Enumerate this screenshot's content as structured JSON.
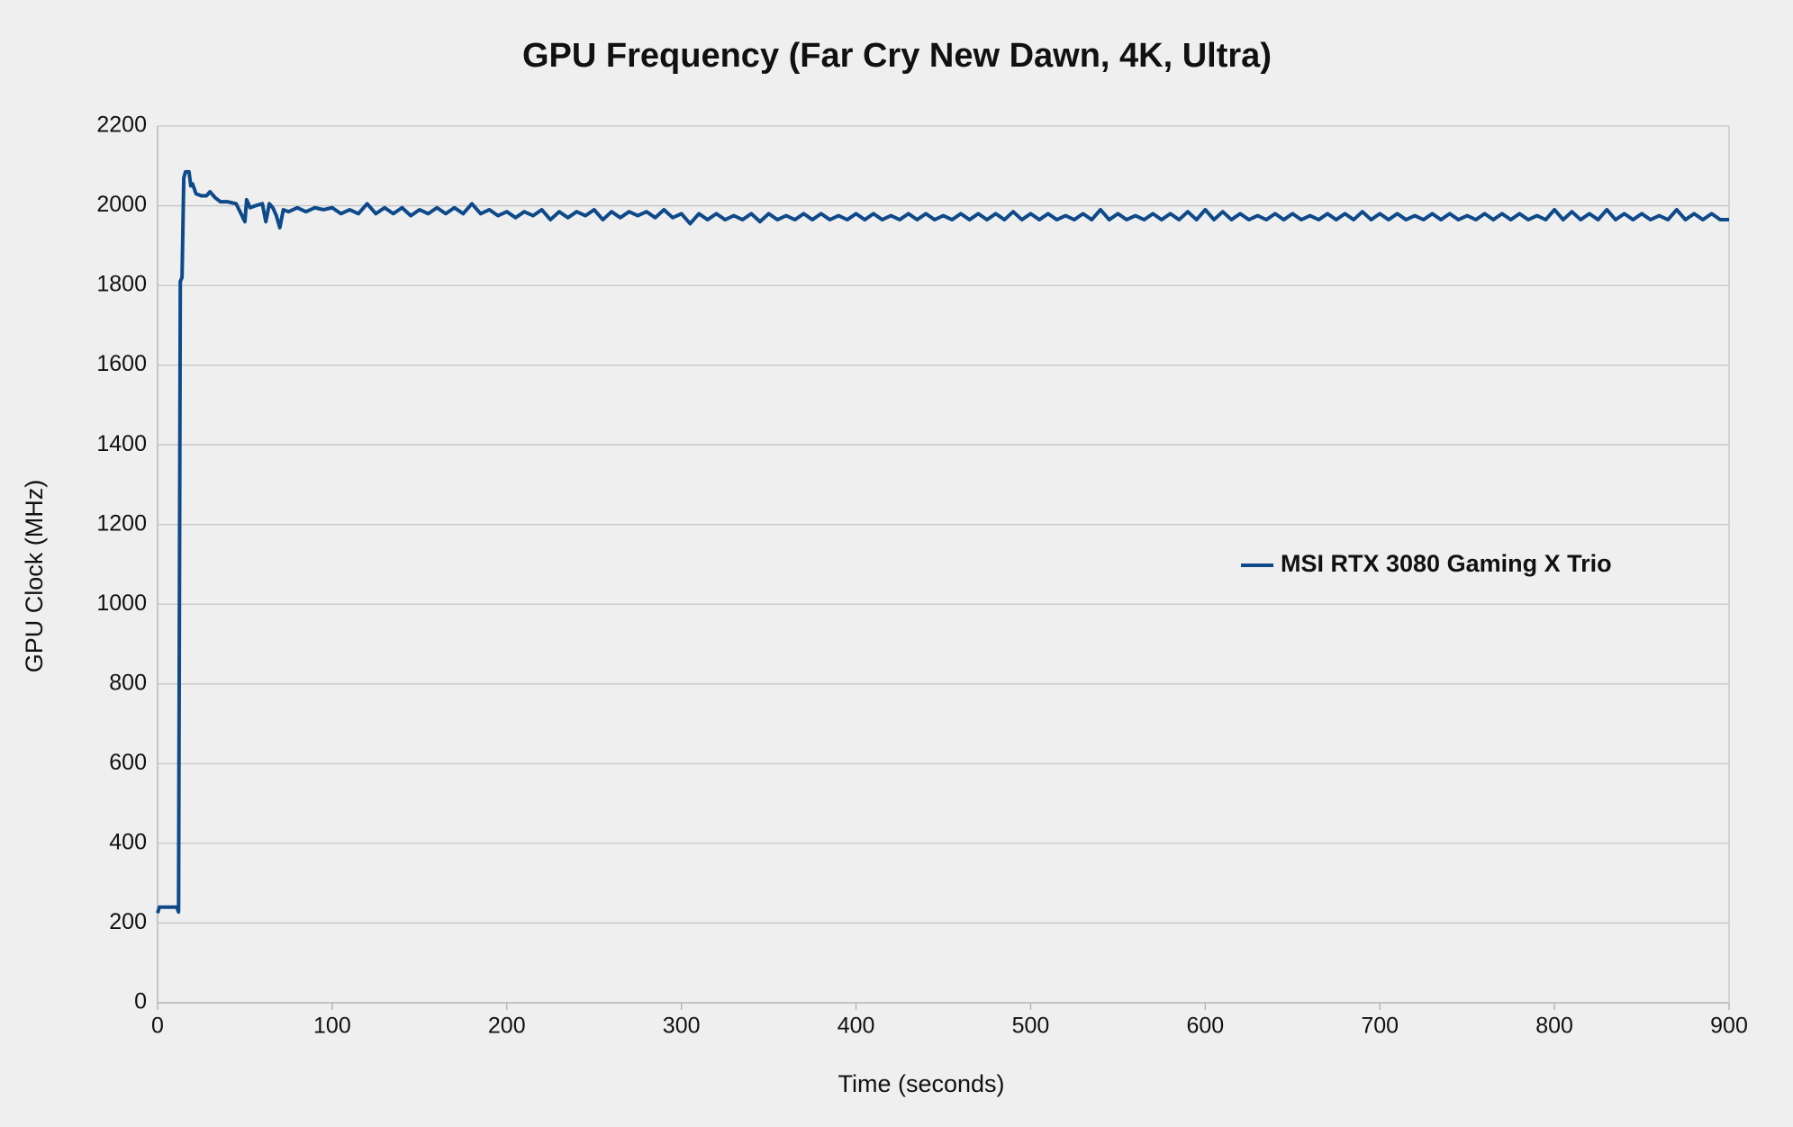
{
  "chart_data": {
    "type": "line",
    "title": "GPU Frequency (Far Cry New Dawn, 4K, Ultra)",
    "x_label": "Time (seconds)",
    "y_label": "GPU Clock (MHz)",
    "x": [
      0,
      1,
      11,
      12,
      13,
      14,
      15,
      16,
      18,
      19,
      20,
      22,
      25,
      28,
      30,
      33,
      36,
      40,
      45,
      50,
      51,
      53,
      56,
      60,
      62,
      64,
      66,
      68,
      70,
      72,
      75,
      80,
      85,
      90,
      95,
      100,
      105,
      110,
      115,
      120,
      125,
      130,
      135,
      140,
      145,
      150,
      155,
      160,
      165,
      170,
      175,
      180,
      185,
      190,
      195,
      200,
      205,
      210,
      215,
      220,
      225,
      230,
      235,
      240,
      245,
      250,
      255,
      260,
      265,
      270,
      275,
      280,
      285,
      290,
      295,
      300,
      305,
      310,
      315,
      320,
      325,
      330,
      335,
      340,
      345,
      350,
      355,
      360,
      365,
      370,
      375,
      380,
      385,
      390,
      395,
      400,
      405,
      410,
      415,
      420,
      425,
      430,
      435,
      440,
      445,
      450,
      455,
      460,
      465,
      470,
      475,
      480,
      485,
      490,
      495,
      500,
      505,
      510,
      515,
      520,
      525,
      530,
      535,
      540,
      545,
      550,
      555,
      560,
      565,
      570,
      575,
      580,
      585,
      590,
      595,
      600,
      605,
      610,
      615,
      620,
      625,
      630,
      635,
      640,
      645,
      650,
      655,
      660,
      665,
      670,
      675,
      680,
      685,
      690,
      695,
      700,
      705,
      710,
      715,
      720,
      725,
      730,
      735,
      740,
      745,
      750,
      755,
      760,
      765,
      770,
      775,
      780,
      785,
      790,
      795,
      800,
      805,
      810,
      815,
      820,
      825,
      830,
      835,
      840,
      845,
      850,
      855,
      860,
      865,
      870,
      875,
      880,
      885,
      890,
      895,
      900
    ],
    "series": [
      {
        "name": "MSI RTX 3080 Gaming X Trio",
        "color": "#0e4a8a",
        "values": [
          225,
          240,
          240,
          228,
          1810,
          1820,
          2070,
          2085,
          2085,
          2050,
          2055,
          2030,
          2025,
          2025,
          2035,
          2020,
          2010,
          2010,
          2005,
          1960,
          2015,
          1995,
          2000,
          2005,
          1960,
          2005,
          1995,
          1975,
          1945,
          1990,
          1985,
          1995,
          1985,
          1995,
          1990,
          1995,
          1980,
          1990,
          1980,
          2005,
          1980,
          1995,
          1980,
          1995,
          1975,
          1990,
          1980,
          1995,
          1980,
          1995,
          1980,
          2005,
          1980,
          1990,
          1975,
          1985,
          1970,
          1985,
          1975,
          1990,
          1965,
          1985,
          1970,
          1985,
          1975,
          1990,
          1965,
          1985,
          1970,
          1985,
          1975,
          1985,
          1970,
          1990,
          1970,
          1980,
          1955,
          1980,
          1965,
          1980,
          1965,
          1975,
          1965,
          1980,
          1960,
          1980,
          1965,
          1975,
          1965,
          1980,
          1965,
          1980,
          1965,
          1975,
          1965,
          1980,
          1965,
          1980,
          1965,
          1975,
          1965,
          1980,
          1965,
          1980,
          1965,
          1975,
          1965,
          1980,
          1965,
          1980,
          1965,
          1980,
          1965,
          1985,
          1965,
          1980,
          1965,
          1980,
          1965,
          1975,
          1965,
          1980,
          1965,
          1990,
          1965,
          1980,
          1965,
          1975,
          1965,
          1980,
          1965,
          1980,
          1965,
          1985,
          1965,
          1990,
          1965,
          1985,
          1965,
          1980,
          1965,
          1975,
          1965,
          1980,
          1965,
          1980,
          1965,
          1975,
          1965,
          1980,
          1965,
          1980,
          1965,
          1985,
          1965,
          1980,
          1965,
          1980,
          1965,
          1975,
          1965,
          1980,
          1965,
          1980,
          1965,
          1975,
          1965,
          1980,
          1965,
          1980,
          1965,
          1980,
          1965,
          1975,
          1965,
          1990,
          1965,
          1985,
          1965,
          1980,
          1965,
          1990,
          1965,
          1980,
          1965,
          1980,
          1965,
          1975,
          1965,
          1990,
          1965,
          1980,
          1965,
          1980,
          1965,
          1965
        ]
      }
    ],
    "xlim": [
      0,
      900
    ],
    "xticks": [
      0,
      100,
      200,
      300,
      400,
      500,
      600,
      700,
      800,
      900
    ],
    "ylim": [
      0,
      2200
    ],
    "yticks": [
      0,
      200,
      400,
      600,
      800,
      1000,
      1200,
      1400,
      1600,
      1800,
      2000,
      2200
    ],
    "grid": true,
    "legend": "right"
  }
}
